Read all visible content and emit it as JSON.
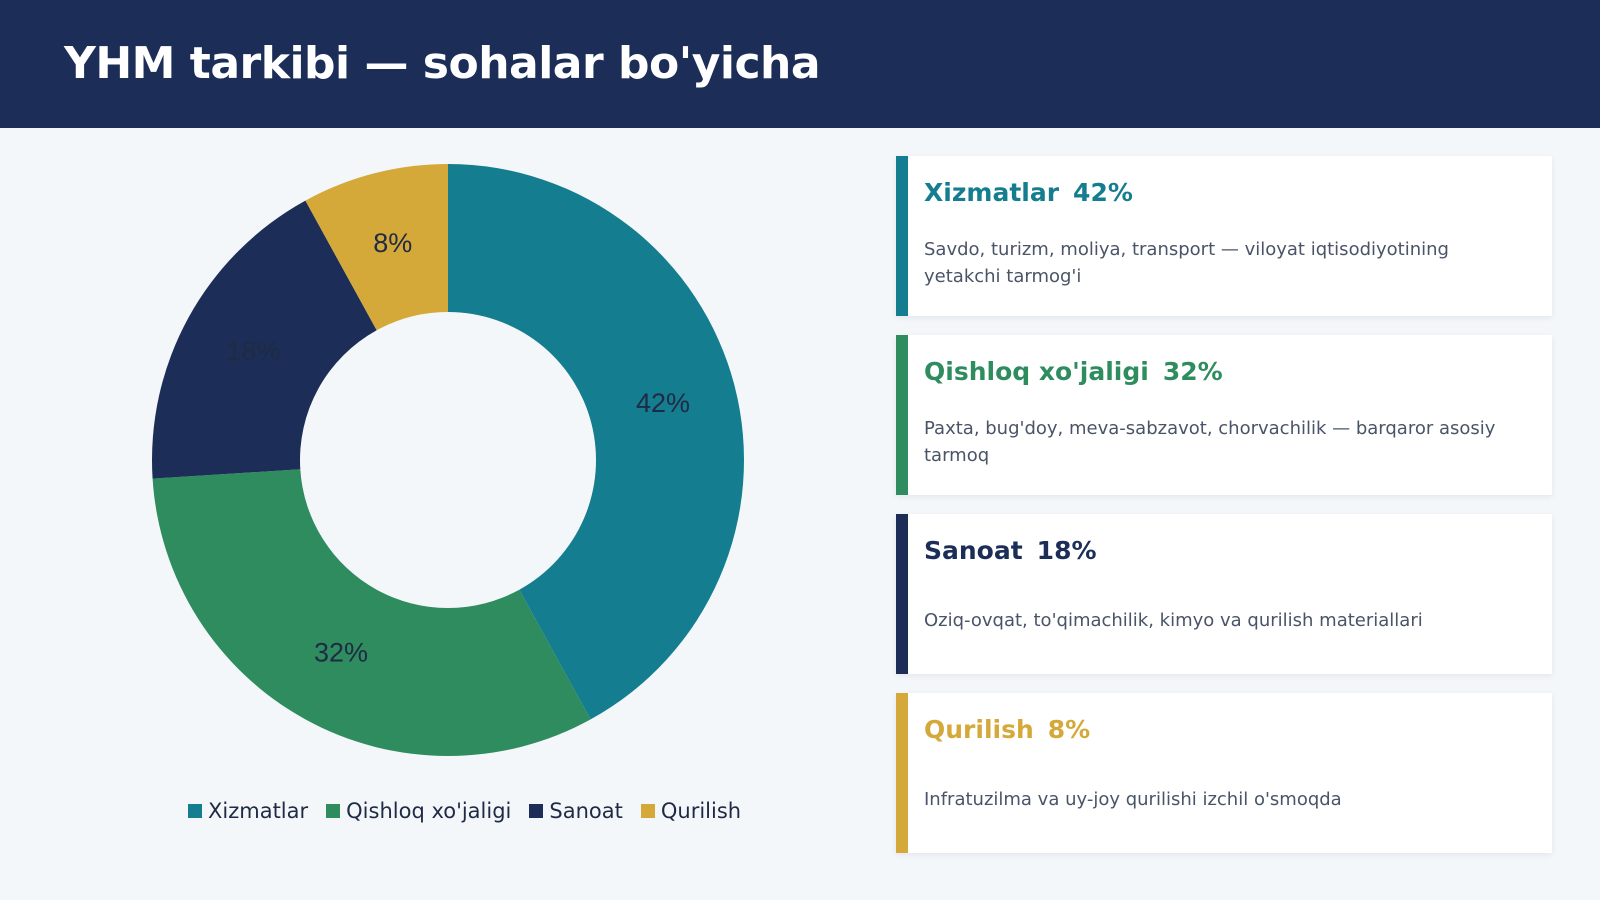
{
  "header": {
    "title": "YHM tarkibi — sohalar bo'yicha"
  },
  "chart_data": {
    "type": "pie",
    "donut": true,
    "categories": [
      "Xizmatlar",
      "Qishloq xo'jaligi",
      "Sanoat",
      "Qurilish"
    ],
    "values": [
      42,
      32,
      18,
      8
    ],
    "data_labels": [
      "42%",
      "32%",
      "18%",
      "8%"
    ],
    "colors": [
      "#147d8f",
      "#2e8c5e",
      "#1c2e57",
      "#d4a93a"
    ],
    "legend_position": "bottom"
  },
  "cards": [
    {
      "name": "Xizmatlar",
      "percent": "42%",
      "color": "#147d8f",
      "description": "Savdo, turizm, moliya, transport — viloyat iqtisodiyotining yetakchi tarmog'i"
    },
    {
      "name": "Qishloq xo'jaligi",
      "percent": "32%",
      "color": "#2e8c5e",
      "description": "Paxta, bug'doy, meva-sabzavot, chorvachilik — barqaror asosiy tarmoq"
    },
    {
      "name": "Sanoat",
      "percent": "18%",
      "color": "#1c2e57",
      "description": "Oziq-ovqat, to'qimachilik, kimyo va qurilish materiallari"
    },
    {
      "name": "Qurilish",
      "percent": "8%",
      "color": "#d4a93a",
      "description": "Infratuzilma va uy-joy qurilishi izchil o'smoqda"
    }
  ]
}
